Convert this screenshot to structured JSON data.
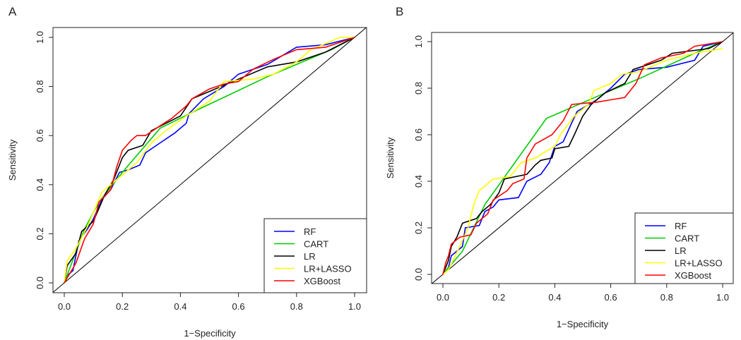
{
  "colors": {
    "RF": "#0000ff",
    "CART": "#00cc00",
    "LR": "#000000",
    "LR+LASSO": "#ffff00",
    "XGBoost": "#ff0000",
    "diagonal": "#000000"
  },
  "chart_data": [
    {
      "panel_label": "A",
      "type": "line",
      "xlabel": "1−Specificity",
      "ylabel": "Sensitivity",
      "xlim": [
        0,
        1
      ],
      "ylim": [
        0,
        1
      ],
      "xticks": [
        "0.0",
        "0.2",
        "0.4",
        "0.6",
        "0.8",
        "1.0"
      ],
      "yticks": [
        "0.0",
        "0.2",
        "0.4",
        "0.6",
        "0.8",
        "1.0"
      ],
      "legend_position": "bottom-right",
      "legend": [
        "RF",
        "CART",
        "LR",
        "LR+LASSO",
        "XGBoost"
      ],
      "reference_line": [
        [
          0,
          0
        ],
        [
          1,
          1
        ]
      ],
      "series": [
        {
          "name": "RF",
          "points": [
            [
              0,
              0
            ],
            [
              0.01,
              0.03
            ],
            [
              0.03,
              0.05
            ],
            [
              0.05,
              0.17
            ],
            [
              0.08,
              0.22
            ],
            [
              0.1,
              0.26
            ],
            [
              0.13,
              0.34
            ],
            [
              0.16,
              0.38
            ],
            [
              0.19,
              0.45
            ],
            [
              0.22,
              0.46
            ],
            [
              0.26,
              0.48
            ],
            [
              0.28,
              0.53
            ],
            [
              0.33,
              0.57
            ],
            [
              0.38,
              0.61
            ],
            [
              0.42,
              0.65
            ],
            [
              0.43,
              0.69
            ],
            [
              0.48,
              0.75
            ],
            [
              0.55,
              0.8
            ],
            [
              0.6,
              0.85
            ],
            [
              0.7,
              0.89
            ],
            [
              0.8,
              0.96
            ],
            [
              0.9,
              0.97
            ],
            [
              1,
              1
            ]
          ]
        },
        {
          "name": "CART",
          "points": [
            [
              0,
              0
            ],
            [
              0.07,
              0.22
            ],
            [
              0.12,
              0.33
            ],
            [
              0.2,
              0.45
            ],
            [
              0.33,
              0.63
            ],
            [
              0.45,
              0.7
            ],
            [
              0.7,
              0.84
            ],
            [
              0.92,
              0.95
            ],
            [
              1,
              1
            ]
          ]
        },
        {
          "name": "LR",
          "points": [
            [
              0,
              0
            ],
            [
              0.01,
              0.07
            ],
            [
              0.04,
              0.12
            ],
            [
              0.06,
              0.21
            ],
            [
              0.1,
              0.25
            ],
            [
              0.14,
              0.36
            ],
            [
              0.17,
              0.42
            ],
            [
              0.2,
              0.51
            ],
            [
              0.22,
              0.54
            ],
            [
              0.27,
              0.56
            ],
            [
              0.3,
              0.62
            ],
            [
              0.35,
              0.65
            ],
            [
              0.4,
              0.68
            ],
            [
              0.44,
              0.75
            ],
            [
              0.5,
              0.78
            ],
            [
              0.6,
              0.83
            ],
            [
              0.7,
              0.88
            ],
            [
              0.8,
              0.9
            ],
            [
              0.9,
              0.94
            ],
            [
              1,
              1
            ]
          ]
        },
        {
          "name": "LR+LASSO",
          "points": [
            [
              0,
              0
            ],
            [
              0.01,
              0.09
            ],
            [
              0.04,
              0.14
            ],
            [
              0.08,
              0.23
            ],
            [
              0.13,
              0.37
            ],
            [
              0.17,
              0.41
            ],
            [
              0.2,
              0.44
            ],
            [
              0.25,
              0.49
            ],
            [
              0.3,
              0.57
            ],
            [
              0.35,
              0.62
            ],
            [
              0.42,
              0.68
            ],
            [
              0.5,
              0.74
            ],
            [
              0.55,
              0.82
            ],
            [
              0.65,
              0.83
            ],
            [
              0.72,
              0.85
            ],
            [
              0.8,
              0.9
            ],
            [
              0.85,
              0.95
            ],
            [
              0.95,
              1
            ],
            [
              1,
              1
            ]
          ]
        },
        {
          "name": "XGBoost",
          "points": [
            [
              0,
              0
            ],
            [
              0.01,
              0.02
            ],
            [
              0.04,
              0.08
            ],
            [
              0.07,
              0.18
            ],
            [
              0.1,
              0.24
            ],
            [
              0.12,
              0.33
            ],
            [
              0.16,
              0.38
            ],
            [
              0.18,
              0.47
            ],
            [
              0.2,
              0.54
            ],
            [
              0.23,
              0.58
            ],
            [
              0.25,
              0.6
            ],
            [
              0.28,
              0.6
            ],
            [
              0.33,
              0.64
            ],
            [
              0.37,
              0.67
            ],
            [
              0.42,
              0.72
            ],
            [
              0.44,
              0.75
            ],
            [
              0.5,
              0.79
            ],
            [
              0.55,
              0.81
            ],
            [
              0.6,
              0.82
            ],
            [
              0.65,
              0.87
            ],
            [
              0.72,
              0.91
            ],
            [
              0.8,
              0.95
            ],
            [
              0.9,
              0.96
            ],
            [
              1,
              1
            ]
          ]
        }
      ]
    },
    {
      "panel_label": "B",
      "type": "line",
      "xlabel": "1−Specificity",
      "ylabel": "Sensitivity",
      "xlim": [
        0,
        1
      ],
      "ylim": [
        0,
        1
      ],
      "xticks": [
        "0.0",
        "0.2",
        "0.4",
        "0.6",
        "0.8",
        "1.0"
      ],
      "yticks": [
        "0.0",
        "0.2",
        "0.4",
        "0.6",
        "0.8",
        "1.0"
      ],
      "legend_position": "bottom-right",
      "legend": [
        "RF",
        "CART",
        "LR",
        "LR+LASSO",
        "XGBoost"
      ],
      "reference_line": [
        [
          0,
          0
        ],
        [
          1,
          1
        ]
      ],
      "series": [
        {
          "name": "RF",
          "points": [
            [
              0,
              0
            ],
            [
              0.02,
              0.03
            ],
            [
              0.03,
              0.08
            ],
            [
              0.07,
              0.12
            ],
            [
              0.08,
              0.2
            ],
            [
              0.13,
              0.21
            ],
            [
              0.15,
              0.27
            ],
            [
              0.18,
              0.29
            ],
            [
              0.2,
              0.32
            ],
            [
              0.27,
              0.33
            ],
            [
              0.3,
              0.4
            ],
            [
              0.35,
              0.43
            ],
            [
              0.38,
              0.48
            ],
            [
              0.4,
              0.55
            ],
            [
              0.43,
              0.57
            ],
            [
              0.46,
              0.65
            ],
            [
              0.48,
              0.7
            ],
            [
              0.55,
              0.75
            ],
            [
              0.6,
              0.8
            ],
            [
              0.65,
              0.86
            ],
            [
              0.7,
              0.88
            ],
            [
              0.8,
              0.89
            ],
            [
              0.9,
              0.92
            ],
            [
              0.93,
              0.98
            ],
            [
              1,
              1
            ]
          ]
        },
        {
          "name": "CART",
          "points": [
            [
              0,
              0
            ],
            [
              0.07,
              0.1
            ],
            [
              0.15,
              0.3
            ],
            [
              0.37,
              0.67
            ],
            [
              0.6,
              0.79
            ],
            [
              0.7,
              0.84
            ],
            [
              0.9,
              0.95
            ],
            [
              1,
              1
            ]
          ]
        },
        {
          "name": "LR",
          "points": [
            [
              0,
              0
            ],
            [
              0.02,
              0.06
            ],
            [
              0.03,
              0.12
            ],
            [
              0.05,
              0.16
            ],
            [
              0.07,
              0.22
            ],
            [
              0.12,
              0.24
            ],
            [
              0.14,
              0.27
            ],
            [
              0.17,
              0.3
            ],
            [
              0.2,
              0.35
            ],
            [
              0.22,
              0.41
            ],
            [
              0.3,
              0.43
            ],
            [
              0.33,
              0.47
            ],
            [
              0.35,
              0.49
            ],
            [
              0.39,
              0.5
            ],
            [
              0.4,
              0.54
            ],
            [
              0.45,
              0.55
            ],
            [
              0.47,
              0.6
            ],
            [
              0.5,
              0.68
            ],
            [
              0.53,
              0.73
            ],
            [
              0.58,
              0.78
            ],
            [
              0.65,
              0.82
            ],
            [
              0.68,
              0.88
            ],
            [
              0.78,
              0.92
            ],
            [
              0.82,
              0.95
            ],
            [
              0.95,
              0.97
            ],
            [
              1,
              1
            ]
          ]
        },
        {
          "name": "LR+LASSO",
          "points": [
            [
              0,
              0
            ],
            [
              0.02,
              0.02
            ],
            [
              0.06,
              0.12
            ],
            [
              0.09,
              0.2
            ],
            [
              0.11,
              0.3
            ],
            [
              0.13,
              0.36
            ],
            [
              0.16,
              0.39
            ],
            [
              0.18,
              0.41
            ],
            [
              0.24,
              0.42
            ],
            [
              0.28,
              0.48
            ],
            [
              0.33,
              0.5
            ],
            [
              0.37,
              0.53
            ],
            [
              0.4,
              0.55
            ],
            [
              0.42,
              0.6
            ],
            [
              0.47,
              0.68
            ],
            [
              0.52,
              0.73
            ],
            [
              0.54,
              0.79
            ],
            [
              0.6,
              0.82
            ],
            [
              0.64,
              0.86
            ],
            [
              0.7,
              0.87
            ],
            [
              0.8,
              0.92
            ],
            [
              0.9,
              0.95
            ],
            [
              1,
              0.97
            ]
          ]
        },
        {
          "name": "XGBoost",
          "points": [
            [
              0,
              0
            ],
            [
              0.01,
              0.05
            ],
            [
              0.02,
              0.08
            ],
            [
              0.03,
              0.13
            ],
            [
              0.06,
              0.16
            ],
            [
              0.1,
              0.17
            ],
            [
              0.12,
              0.22
            ],
            [
              0.16,
              0.26
            ],
            [
              0.18,
              0.32
            ],
            [
              0.23,
              0.36
            ],
            [
              0.25,
              0.39
            ],
            [
              0.29,
              0.41
            ],
            [
              0.3,
              0.5
            ],
            [
              0.33,
              0.56
            ],
            [
              0.36,
              0.58
            ],
            [
              0.39,
              0.6
            ],
            [
              0.41,
              0.63
            ],
            [
              0.43,
              0.66
            ],
            [
              0.46,
              0.73
            ],
            [
              0.55,
              0.74
            ],
            [
              0.6,
              0.75
            ],
            [
              0.65,
              0.76
            ],
            [
              0.69,
              0.82
            ],
            [
              0.72,
              0.9
            ],
            [
              0.78,
              0.93
            ],
            [
              0.86,
              0.95
            ],
            [
              0.9,
              0.98
            ],
            [
              1,
              1
            ]
          ]
        }
      ]
    }
  ]
}
